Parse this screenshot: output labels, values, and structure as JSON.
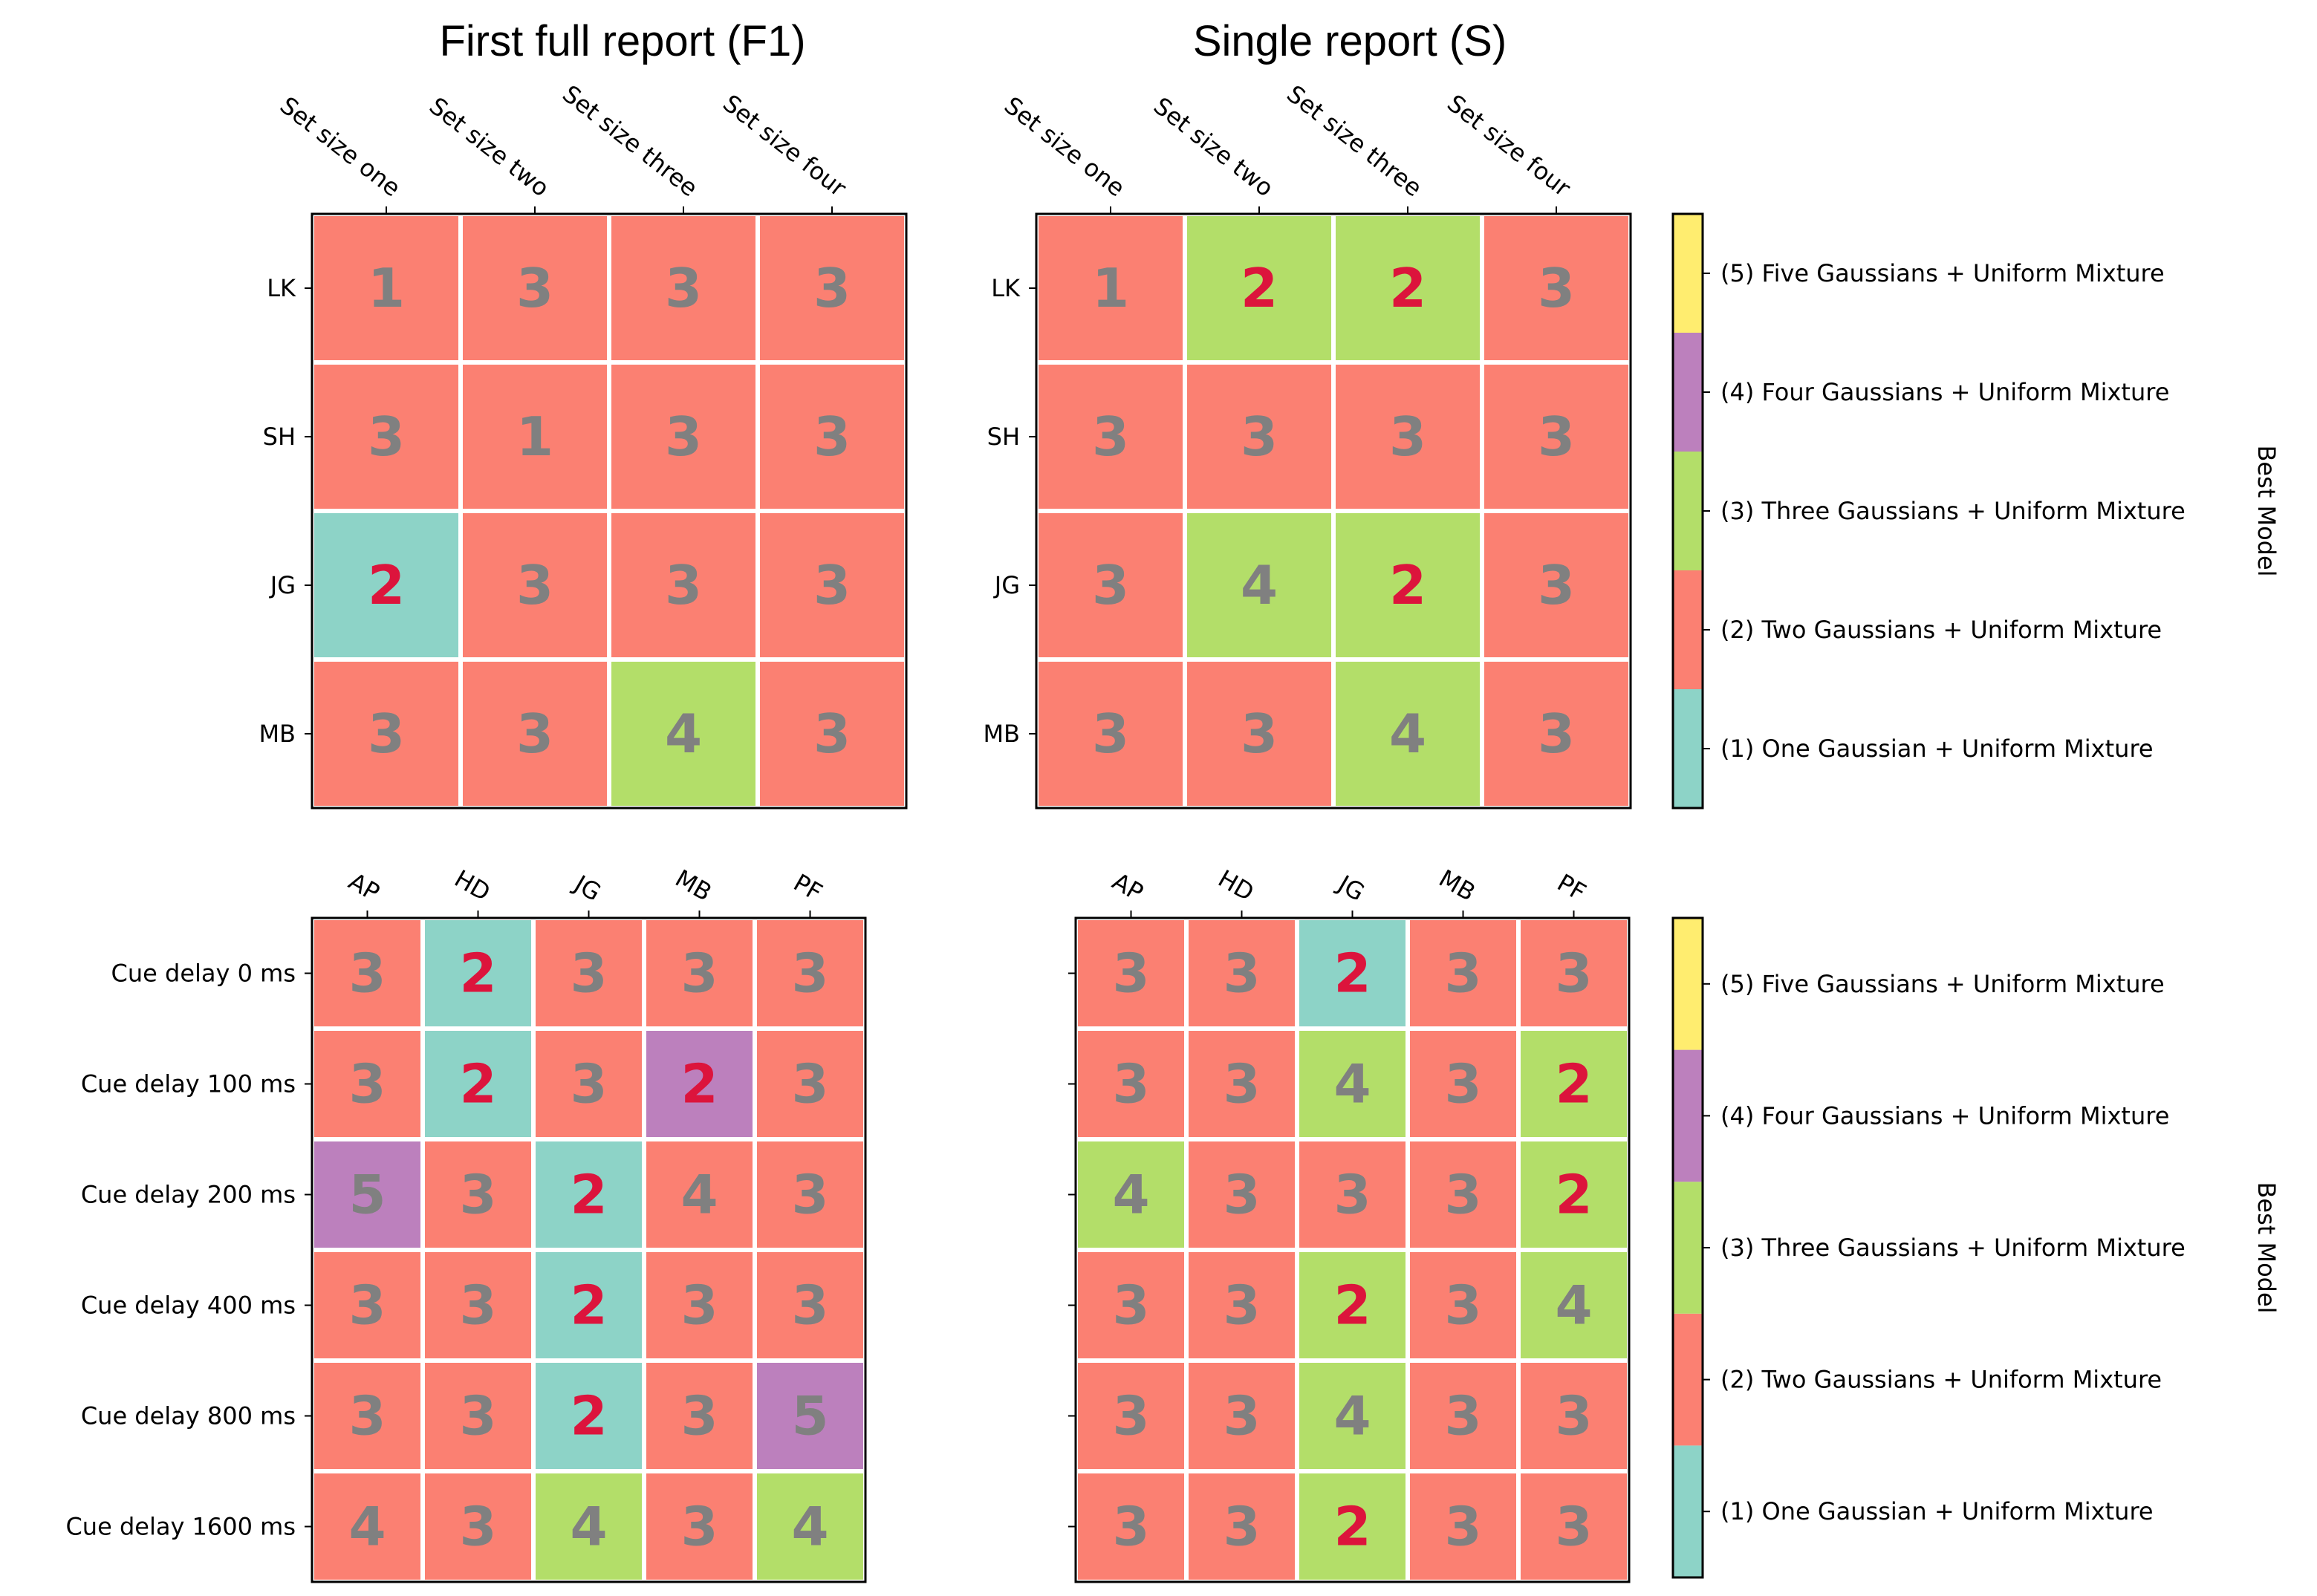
{
  "colors": {
    "1": "#8dd3c7",
    "2": "#fb8072",
    "3": "#b3de69",
    "4": "#bc80bd",
    "5": "#ffed6f",
    "text_default": "#808080",
    "text_highlight": "#dc143c"
  },
  "chart_data": [
    {
      "type": "heatmap",
      "id": "f1_setsize",
      "title": "First full report (F1)",
      "xlabels": [
        "Set size one",
        "Set size two",
        "Set size three",
        "Set size four"
      ],
      "ylabels": [
        "LK",
        "SH",
        "JG",
        "MB"
      ],
      "best_model": [
        [
          2,
          2,
          2,
          2
        ],
        [
          2,
          2,
          2,
          2
        ],
        [
          1,
          2,
          2,
          2
        ],
        [
          2,
          2,
          3,
          2
        ]
      ],
      "annotations": [
        [
          1,
          3,
          3,
          3
        ],
        [
          3,
          1,
          3,
          3
        ],
        [
          2,
          3,
          3,
          3
        ],
        [
          3,
          3,
          4,
          3
        ]
      ],
      "highlight": [
        [
          false,
          false,
          false,
          false
        ],
        [
          false,
          false,
          false,
          false
        ],
        [
          true,
          false,
          false,
          false
        ],
        [
          false,
          false,
          false,
          false
        ]
      ]
    },
    {
      "type": "heatmap",
      "id": "s_setsize",
      "title": "Single report (S)",
      "xlabels": [
        "Set size one",
        "Set size two",
        "Set size three",
        "Set size four"
      ],
      "ylabels": [
        "LK",
        "SH",
        "JG",
        "MB"
      ],
      "best_model": [
        [
          2,
          3,
          3,
          2
        ],
        [
          2,
          2,
          2,
          2
        ],
        [
          2,
          3,
          3,
          2
        ],
        [
          2,
          2,
          3,
          2
        ]
      ],
      "annotations": [
        [
          1,
          2,
          2,
          3
        ],
        [
          3,
          3,
          3,
          3
        ],
        [
          3,
          4,
          2,
          3
        ],
        [
          3,
          3,
          4,
          3
        ]
      ],
      "highlight": [
        [
          false,
          true,
          true,
          false
        ],
        [
          false,
          false,
          false,
          false
        ],
        [
          false,
          false,
          true,
          false
        ],
        [
          false,
          false,
          false,
          false
        ]
      ]
    },
    {
      "type": "heatmap",
      "id": "f1_cuedelay",
      "title": "",
      "xlabels": [
        "AP",
        "HD",
        "JG",
        "MB",
        "PF"
      ],
      "ylabels": [
        "Cue delay 0 ms",
        "Cue delay 100 ms",
        "Cue delay 200 ms",
        "Cue delay 400 ms",
        "Cue delay 800 ms",
        "Cue delay 1600 ms"
      ],
      "best_model": [
        [
          2,
          1,
          2,
          2,
          2
        ],
        [
          2,
          1,
          2,
          4,
          2
        ],
        [
          4,
          2,
          1,
          2,
          2
        ],
        [
          2,
          2,
          1,
          2,
          2
        ],
        [
          2,
          2,
          1,
          2,
          4
        ],
        [
          2,
          2,
          3,
          2,
          3
        ]
      ],
      "annotations": [
        [
          3,
          2,
          3,
          3,
          3
        ],
        [
          3,
          2,
          3,
          2,
          3
        ],
        [
          5,
          3,
          2,
          4,
          3
        ],
        [
          3,
          3,
          2,
          3,
          3
        ],
        [
          3,
          3,
          2,
          3,
          5
        ],
        [
          4,
          3,
          4,
          3,
          4
        ]
      ],
      "highlight": [
        [
          false,
          true,
          false,
          false,
          false
        ],
        [
          false,
          true,
          false,
          true,
          false
        ],
        [
          false,
          false,
          true,
          false,
          false
        ],
        [
          false,
          false,
          true,
          false,
          false
        ],
        [
          false,
          false,
          true,
          false,
          false
        ],
        [
          false,
          false,
          false,
          false,
          false
        ]
      ]
    },
    {
      "type": "heatmap",
      "id": "s_cuedelay",
      "title": "",
      "xlabels": [
        "AP",
        "HD",
        "JG",
        "MB",
        "PF"
      ],
      "ylabels": [
        "Cue delay 0 ms",
        "Cue delay 100 ms",
        "Cue delay 200 ms",
        "Cue delay 400 ms",
        "Cue delay 800 ms",
        "Cue delay 1600 ms"
      ],
      "best_model": [
        [
          2,
          2,
          1,
          2,
          2
        ],
        [
          2,
          2,
          3,
          2,
          3
        ],
        [
          3,
          2,
          2,
          2,
          3
        ],
        [
          2,
          2,
          3,
          2,
          3
        ],
        [
          2,
          2,
          3,
          2,
          2
        ],
        [
          2,
          2,
          3,
          2,
          2
        ]
      ],
      "annotations": [
        [
          3,
          3,
          2,
          3,
          3
        ],
        [
          3,
          3,
          4,
          3,
          2
        ],
        [
          4,
          3,
          3,
          3,
          2
        ],
        [
          3,
          3,
          2,
          3,
          4
        ],
        [
          3,
          3,
          4,
          3,
          3
        ],
        [
          3,
          3,
          2,
          3,
          3
        ]
      ],
      "highlight": [
        [
          false,
          false,
          true,
          false,
          false
        ],
        [
          false,
          false,
          false,
          false,
          true
        ],
        [
          false,
          false,
          false,
          false,
          true
        ],
        [
          false,
          false,
          true,
          false,
          false
        ],
        [
          false,
          false,
          false,
          false,
          false
        ],
        [
          false,
          false,
          true,
          false,
          false
        ]
      ]
    }
  ],
  "colorbar": {
    "label": "Best Model",
    "levels": [
      1,
      2,
      3,
      4,
      5
    ],
    "ticklabels": [
      "(1) One Gaussian + Uniform Mixture",
      "(2) Two Gaussians + Uniform Mixture",
      "(3) Three Gaussians + Uniform Mixture",
      "(4) Four Gaussians + Uniform Mixture",
      "(5) Five Gaussians + Uniform Mixture"
    ]
  }
}
